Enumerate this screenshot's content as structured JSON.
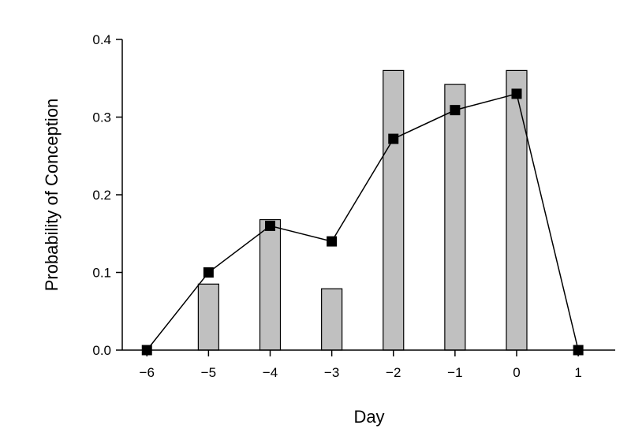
{
  "chart_data": {
    "type": "bar",
    "xlabel": "Day",
    "ylabel": "Probability of Conception",
    "x_ticks": [
      "−6",
      "−5",
      "−4",
      "−3",
      "−2",
      "−1",
      "0",
      "1"
    ],
    "y_ticks": [
      "0.0",
      "0.1",
      "0.2",
      "0.3",
      "0.4"
    ],
    "ylim": [
      0,
      0.4
    ],
    "xlim": [
      -6.4,
      1.6
    ],
    "grid": false,
    "legend": "none",
    "bar_color": "#c0c0c0",
    "bars": {
      "x": [
        -5,
        -4,
        -3,
        -2,
        -1,
        0
      ],
      "values": [
        0.085,
        0.168,
        0.079,
        0.36,
        0.342,
        0.36
      ]
    },
    "line": {
      "marker": "square",
      "x": [
        -6,
        -5,
        -4,
        -3,
        -2,
        -1,
        0,
        1
      ],
      "values": [
        0.0,
        0.1,
        0.16,
        0.14,
        0.272,
        0.309,
        0.33,
        0.0
      ]
    }
  }
}
